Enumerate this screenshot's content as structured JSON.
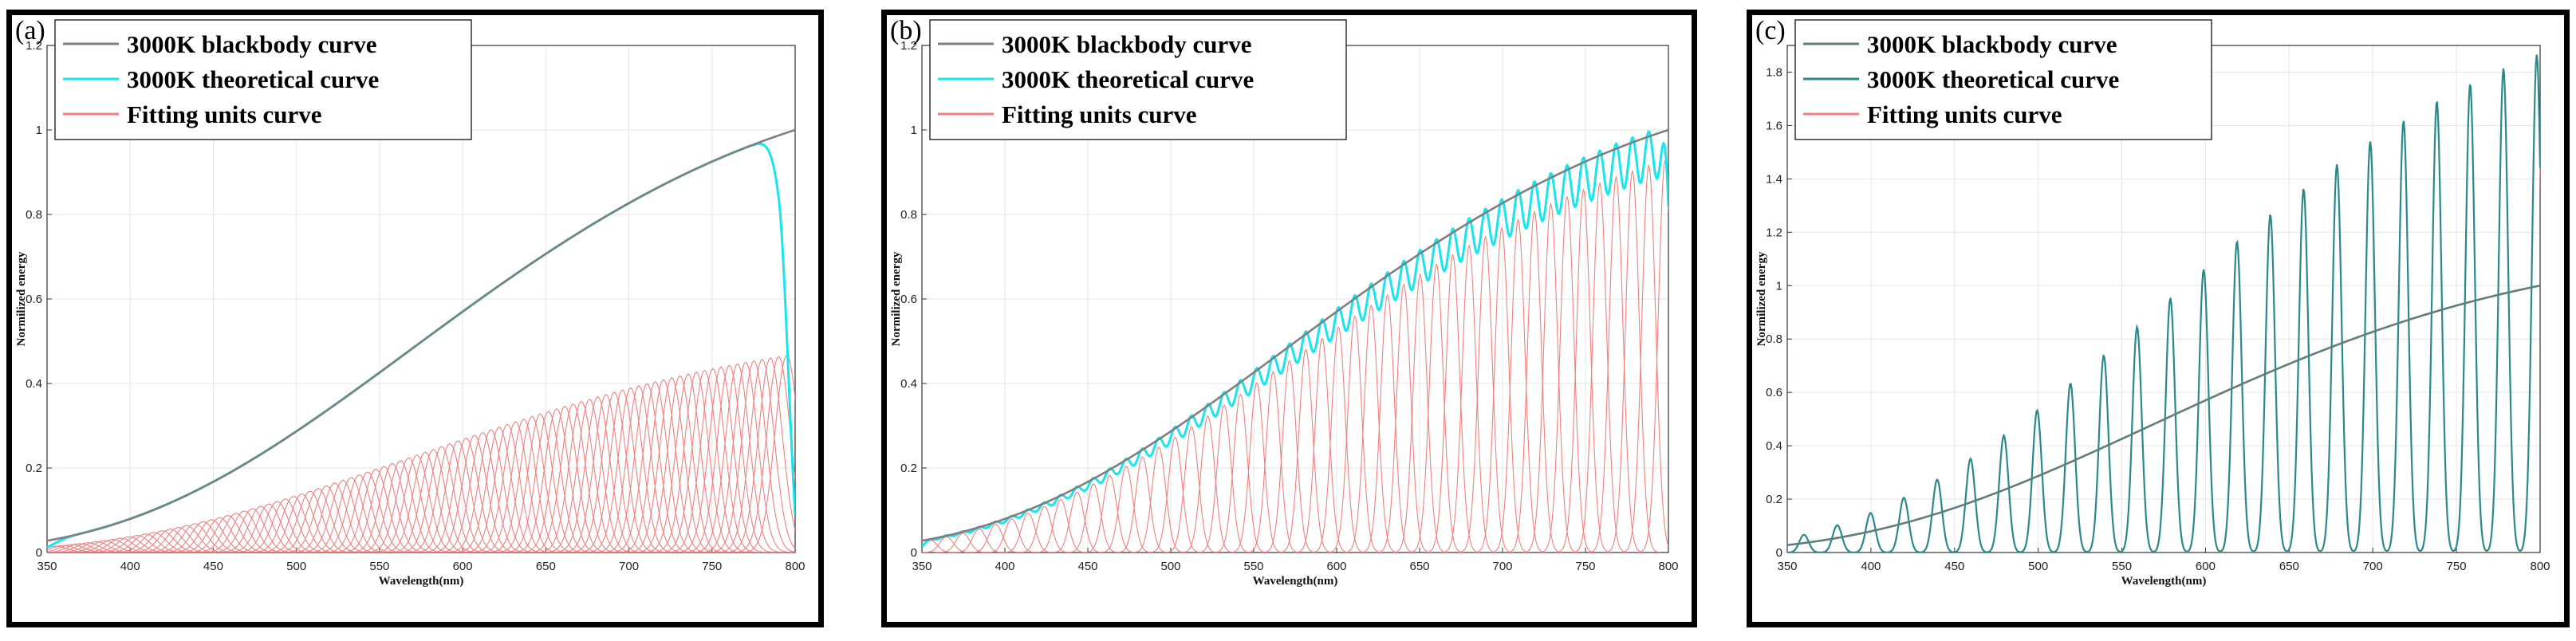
{
  "chart_data": [
    {
      "type": "line",
      "panel_label": "(a)",
      "xlabel": "Wavelength(nm)",
      "ylabel": "Normilized energy",
      "xlim": [
        350,
        800
      ],
      "ylim": [
        0,
        1.2
      ],
      "xticks": [
        350,
        400,
        450,
        500,
        550,
        600,
        650,
        700,
        750,
        800
      ],
      "yticks": [
        0,
        0.2,
        0.4,
        0.6,
        0.8,
        1,
        1.2
      ],
      "grid": true,
      "legend_position": "top-left",
      "series": [
        {
          "name": "3000K blackbody curve",
          "color": "#7f7f7f"
        },
        {
          "name": "3000K theoretical curve",
          "color": "#18e6ec"
        },
        {
          "name": "Fitting units curve",
          "color": "#f08080"
        }
      ],
      "fitting_units": {
        "count": 90,
        "start": 355,
        "end": 795,
        "peak_scale": 0.47
      },
      "theoretical_rolloff_at": 790
    },
    {
      "type": "line",
      "panel_label": "(b)",
      "xlabel": "Wavelength(nm)",
      "ylabel": "Normilized energy",
      "xlim": [
        350,
        800
      ],
      "ylim": [
        0,
        1.2
      ],
      "xticks": [
        350,
        400,
        450,
        500,
        550,
        600,
        650,
        700,
        750,
        800
      ],
      "yticks": [
        0,
        0.2,
        0.4,
        0.6,
        0.8,
        1,
        1.2
      ],
      "grid": true,
      "legend_position": "top-left",
      "series": [
        {
          "name": "3000K blackbody curve",
          "color": "#7f7f7f"
        },
        {
          "name": "3000K theoretical curve",
          "color": "#18e6ec"
        },
        {
          "name": "Fitting units curve",
          "color": "#f08080"
        }
      ],
      "fitting_units": {
        "count": 46,
        "start": 355,
        "end": 798,
        "peak_scale": 0.93
      }
    },
    {
      "type": "line",
      "panel_label": "(c)",
      "xlabel": "Wavelength(nm)",
      "ylabel": "Normilized energy",
      "xlim": [
        350,
        800
      ],
      "ylim": [
        0,
        1.9
      ],
      "xticks": [
        350,
        400,
        450,
        500,
        550,
        600,
        650,
        700,
        750,
        800
      ],
      "yticks": [
        0,
        0.2,
        0.4,
        0.6,
        0.8,
        1,
        1.2,
        1.4,
        1.6,
        1.8
      ],
      "grid": true,
      "legend_position": "top-left",
      "series": [
        {
          "name": "3000K blackbody curve",
          "color": "#607d7d"
        },
        {
          "name": "3000K theoretical curve",
          "color": "#2a8a8a"
        },
        {
          "name": "Fitting units curve",
          "color": "#f08080"
        }
      ],
      "fitting_units": {
        "count": 23,
        "start": 360,
        "end": 798,
        "peak_scale": 1.87
      }
    }
  ]
}
